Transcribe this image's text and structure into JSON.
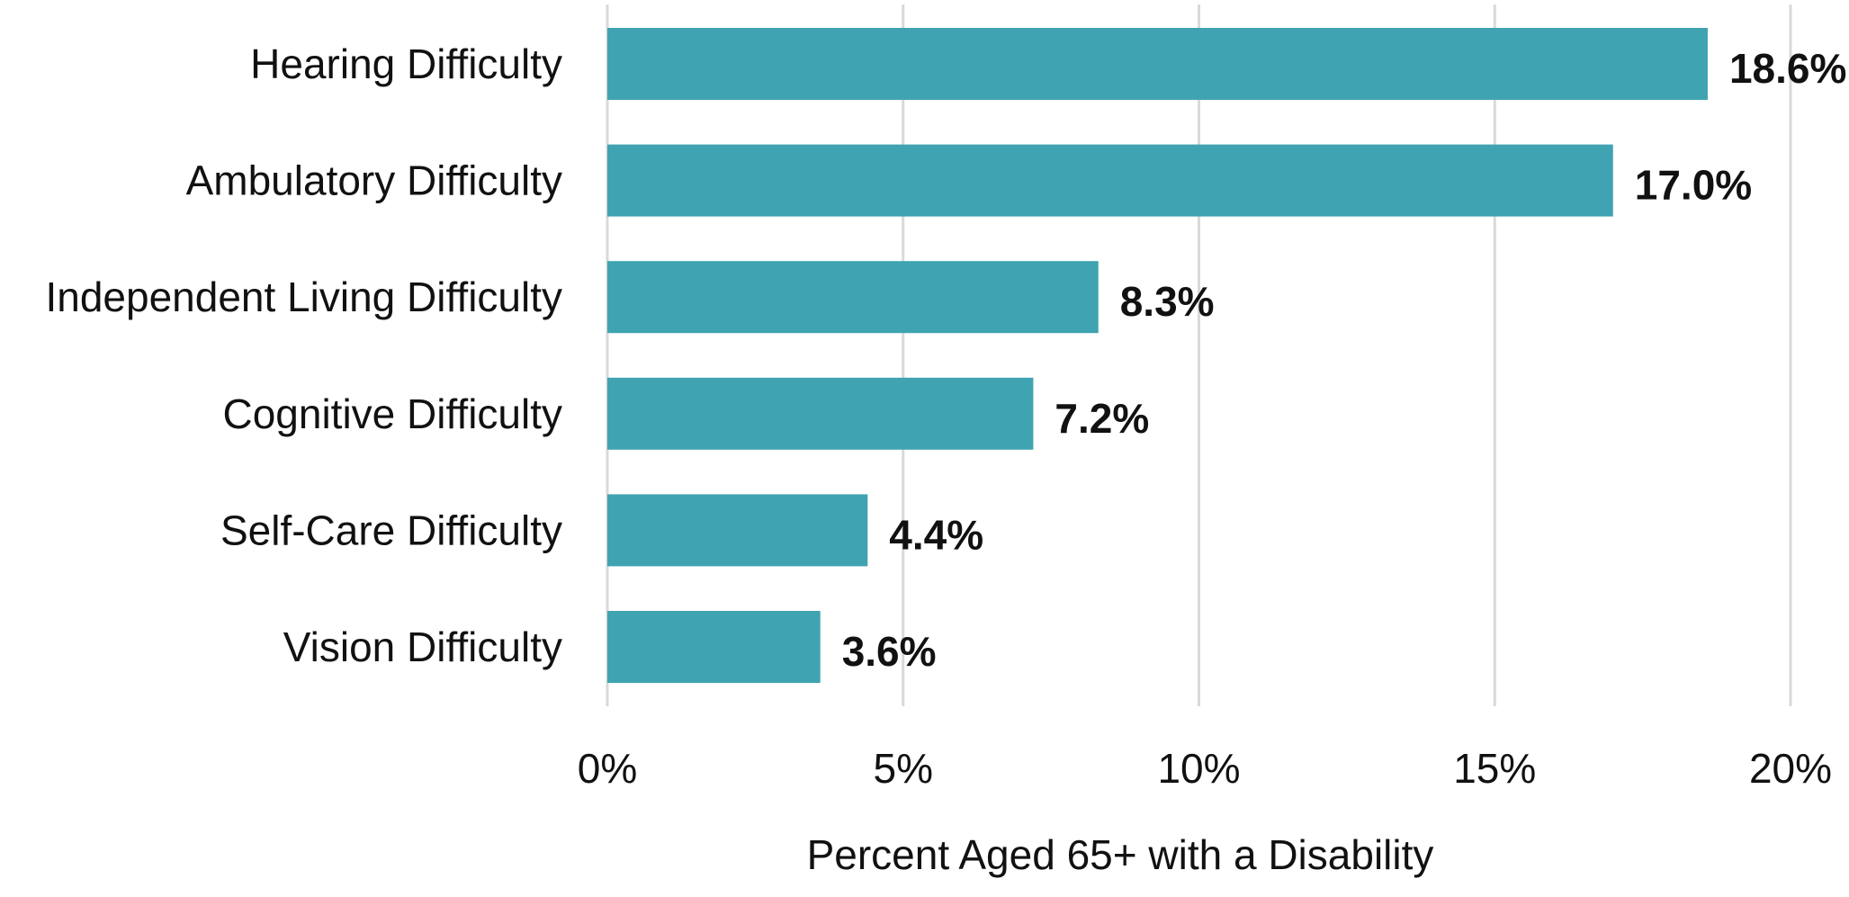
{
  "chart_data": {
    "type": "bar",
    "orientation": "horizontal",
    "title": "",
    "xlabel": "Percent Aged 65+ with a Disability",
    "ylabel": "",
    "xlim": [
      0,
      20
    ],
    "x_ticks": [
      0,
      5,
      10,
      15,
      20
    ],
    "x_tick_labels": [
      "0%",
      "5%",
      "10%",
      "15%",
      "20%"
    ],
    "categories": [
      "Hearing Difficulty",
      "Ambulatory Difficulty",
      "Independent Living Difficulty",
      "Cognitive Difficulty",
      "Self-Care Difficulty",
      "Vision Difficulty"
    ],
    "values": [
      18.6,
      17.0,
      8.3,
      7.2,
      4.4,
      3.6
    ],
    "value_labels": [
      "18.6%",
      "17.0%",
      "8.3%",
      "7.2%",
      "4.4%",
      "3.6%"
    ],
    "grid": "vertical",
    "legend": "none",
    "bar_color": "#40A3B1",
    "grid_color": "#d9d9d9"
  }
}
